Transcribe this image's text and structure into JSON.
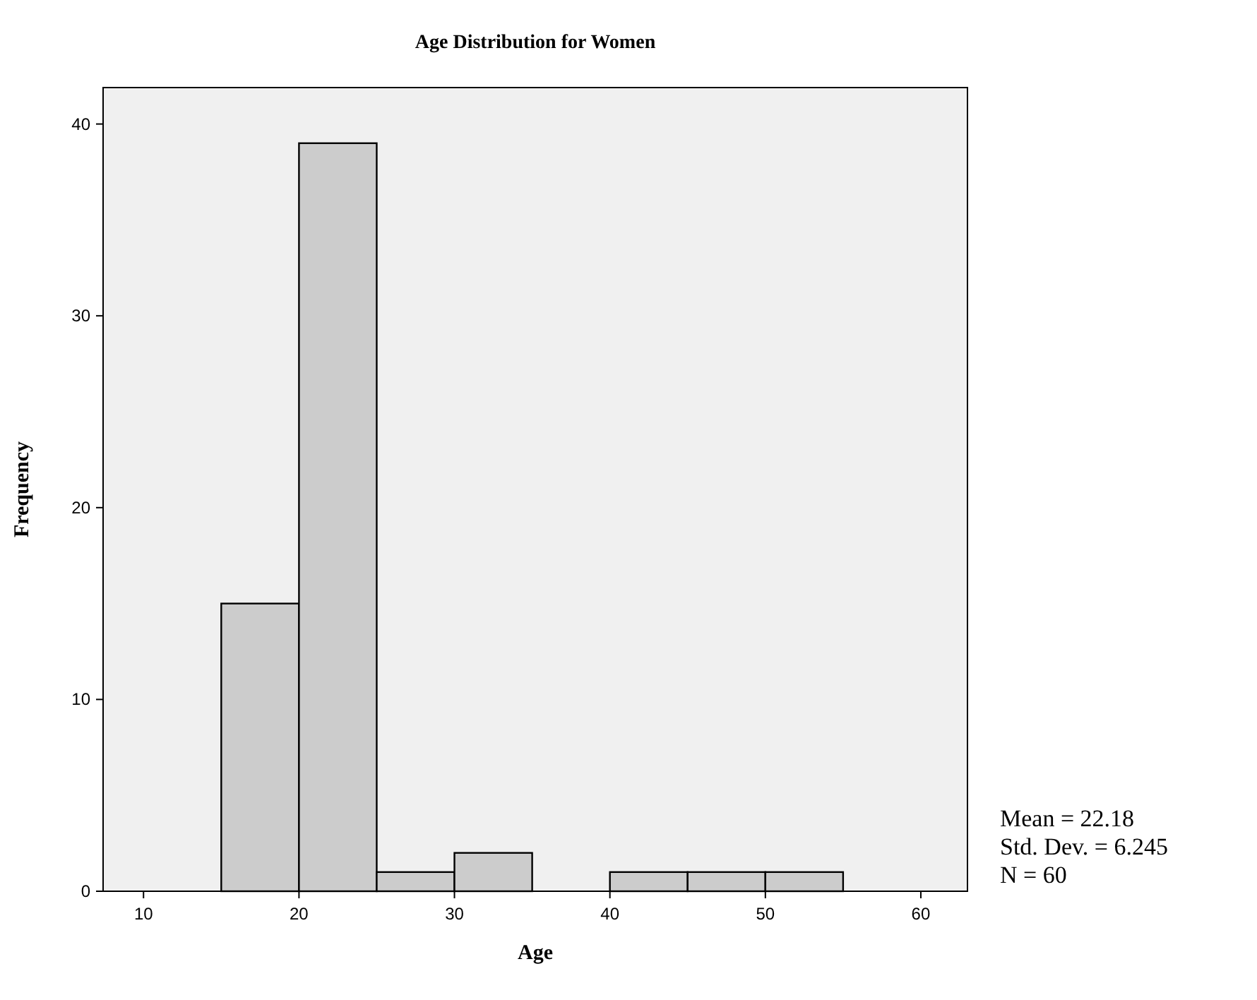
{
  "chart_data": {
    "type": "histogram",
    "title": "Age Distribution for Women",
    "xlabel": "Age",
    "ylabel": "Frequency",
    "bins": [
      15,
      20,
      25,
      30,
      35,
      40,
      45,
      50,
      55
    ],
    "values": [
      15,
      39,
      1,
      2,
      0,
      1,
      1,
      1
    ],
    "color": "#cccccc",
    "xlim": [
      7.4,
      63
    ],
    "xticks": [
      10,
      20,
      30,
      40,
      50,
      60
    ],
    "ylim": [
      0,
      41.9
    ],
    "yticks": [
      0,
      10,
      20,
      30,
      40
    ],
    "grid": false,
    "annotations": [
      "Mean = 22.18",
      "Std. Dev. = 6.245",
      "N = 60"
    ]
  }
}
